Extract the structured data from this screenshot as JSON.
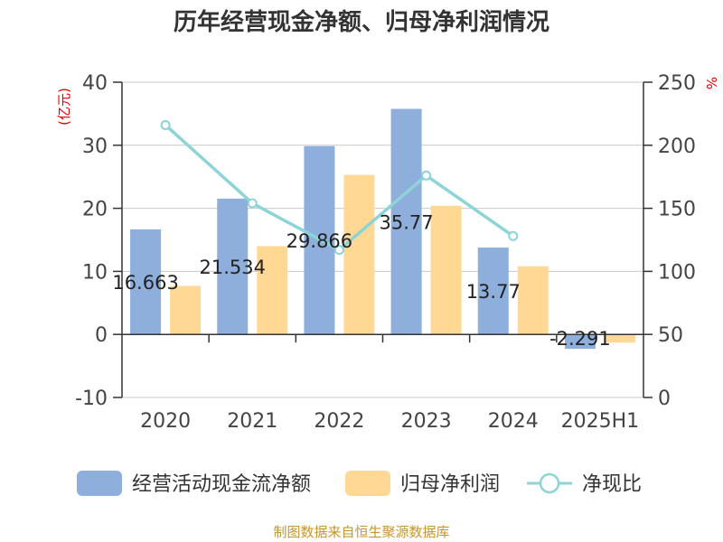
{
  "chart_data": {
    "type": "bar",
    "title": "历年经营现金净额、归母净利润情况",
    "categories": [
      "2020",
      "2021",
      "2022",
      "2023",
      "2024",
      "2025H1"
    ],
    "series": [
      {
        "name": "经营活动现金流净额",
        "type": "bar",
        "axis": "left",
        "color": "#8eaedb",
        "values": [
          16.663,
          21.534,
          29.866,
          35.77,
          13.77,
          -2.291
        ]
      },
      {
        "name": "归母净利润",
        "type": "bar",
        "axis": "left",
        "color": "#ffd994",
        "values": [
          7.7,
          14.0,
          25.3,
          20.4,
          10.8,
          -1.3
        ]
      },
      {
        "name": "净现比",
        "type": "line",
        "axis": "right",
        "color": "#8dd4d7",
        "values": [
          216,
          154,
          117,
          176,
          128,
          null
        ]
      }
    ],
    "data_labels": [
      "16.663",
      "21.534",
      "29.866",
      "35.77",
      "13.77",
      "-2.291"
    ],
    "y_left": {
      "label": "(亿元)",
      "ylim": [
        -10,
        40
      ],
      "ticks": [
        "40",
        "30",
        "20",
        "10",
        "0",
        "-10"
      ]
    },
    "y_right": {
      "label": "%",
      "ylim": [
        0,
        250
      ],
      "ticks": [
        "250",
        "200",
        "150",
        "100",
        "50",
        "0"
      ]
    },
    "grid": true,
    "legend": "bottom",
    "source": "制图数据来自恒生聚源数据库"
  }
}
